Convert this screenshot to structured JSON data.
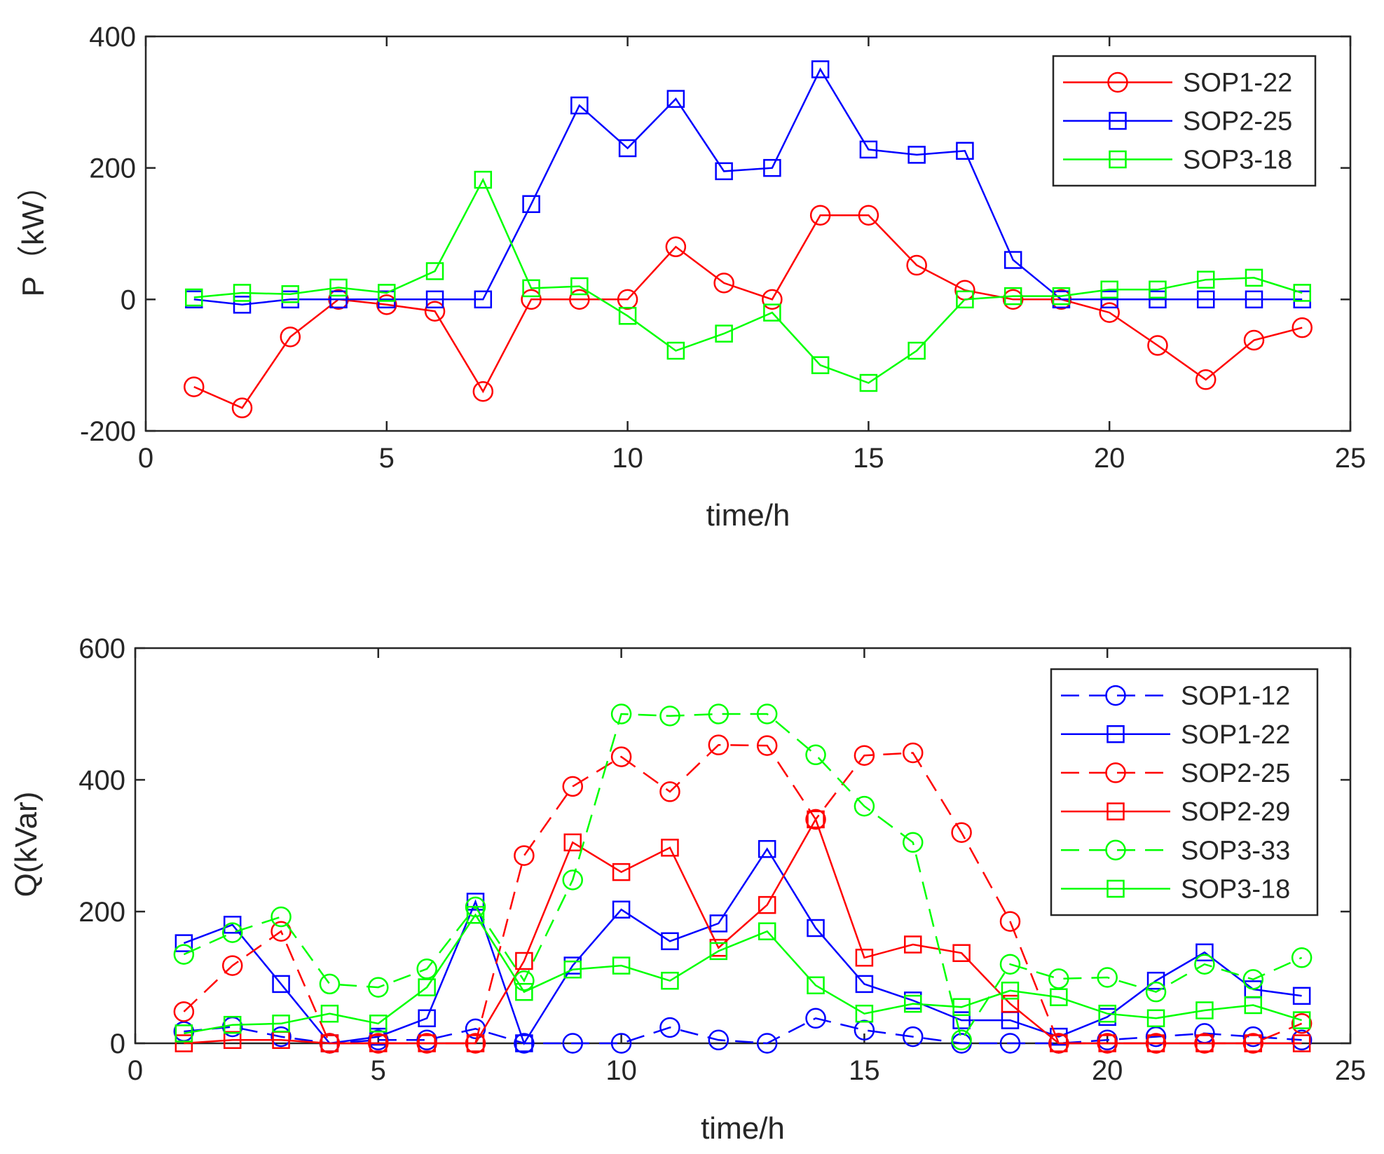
{
  "chart_data": [
    {
      "type": "line",
      "xlabel": "time/h",
      "ylabel": "P（kW）",
      "xlim": [
        0,
        25
      ],
      "ylim": [
        -200,
        400
      ],
      "xticks": [
        "0",
        "5",
        "10",
        "15",
        "20",
        "25"
      ],
      "yticks": [
        "-200",
        "0",
        "200",
        "400"
      ],
      "grid": false,
      "legend_position": "top-right",
      "x": [
        1,
        2,
        3,
        4,
        5,
        6,
        7,
        8,
        9,
        10,
        11,
        12,
        13,
        14,
        15,
        16,
        17,
        18,
        19,
        20,
        21,
        22,
        23,
        24
      ],
      "series": [
        {
          "name": "SOP1-22",
          "color": "#ff0000",
          "marker": "circle",
          "line": "solid",
          "values": [
            -133,
            -165,
            -57,
            0,
            -8,
            -18,
            -140,
            0,
            0,
            0,
            80,
            25,
            0,
            128,
            128,
            52,
            14,
            0,
            0,
            -20,
            -70,
            -122,
            -62,
            -43
          ]
        },
        {
          "name": "SOP2-25",
          "color": "#0000ff",
          "marker": "square",
          "line": "solid",
          "values": [
            0,
            -8,
            0,
            0,
            0,
            0,
            0,
            145,
            295,
            230,
            305,
            195,
            200,
            350,
            228,
            220,
            226,
            60,
            0,
            0,
            0,
            0,
            0,
            0
          ]
        },
        {
          "name": "SOP3-18",
          "color": "#00ff00",
          "marker": "square",
          "line": "solid",
          "values": [
            3,
            10,
            8,
            18,
            10,
            43,
            182,
            17,
            20,
            -25,
            -78,
            -52,
            -20,
            -100,
            -127,
            -78,
            0,
            5,
            5,
            15,
            15,
            30,
            33,
            10
          ]
        }
      ]
    },
    {
      "type": "line",
      "xlabel": "time/h",
      "ylabel": "Q(kVar)",
      "xlim": [
        0,
        25
      ],
      "ylim": [
        0,
        600
      ],
      "xticks": [
        "0",
        "5",
        "10",
        "15",
        "20",
        "25"
      ],
      "yticks": [
        "0",
        "200",
        "400",
        "600"
      ],
      "grid": false,
      "legend_position": "top-right",
      "x": [
        1,
        2,
        3,
        4,
        5,
        6,
        7,
        8,
        9,
        10,
        11,
        12,
        13,
        14,
        15,
        16,
        17,
        18,
        19,
        20,
        21,
        22,
        23,
        24
      ],
      "series": [
        {
          "name": "SOP1-12",
          "color": "#0000ff",
          "marker": "circle",
          "line": "dashed",
          "values": [
            18,
            25,
            10,
            0,
            5,
            5,
            22,
            0,
            0,
            0,
            24,
            5,
            0,
            38,
            20,
            10,
            0,
            0,
            0,
            5,
            10,
            15,
            10,
            5
          ]
        },
        {
          "name": "SOP1-22",
          "color": "#0000ff",
          "marker": "square",
          "line": "solid",
          "values": [
            152,
            180,
            90,
            0,
            10,
            38,
            215,
            0,
            118,
            203,
            155,
            182,
            295,
            175,
            90,
            65,
            35,
            35,
            10,
            40,
            95,
            138,
            82,
            72
          ]
        },
        {
          "name": "SOP2-25",
          "color": "#ff0000",
          "marker": "circle",
          "line": "dashed",
          "values": [
            48,
            118,
            170,
            0,
            0,
            0,
            0,
            285,
            390,
            435,
            382,
            453,
            452,
            340,
            437,
            441,
            320,
            185,
            0,
            0,
            0,
            0,
            0,
            30
          ]
        },
        {
          "name": "SOP2-29",
          "color": "#ff0000",
          "marker": "square",
          "line": "solid",
          "values": [
            0,
            5,
            5,
            0,
            0,
            0,
            0,
            125,
            305,
            260,
            297,
            145,
            210,
            340,
            130,
            150,
            137,
            60,
            0,
            0,
            0,
            0,
            0,
            0
          ]
        },
        {
          "name": "SOP3-33",
          "color": "#00ff00",
          "marker": "circle",
          "line": "dashed",
          "values": [
            135,
            168,
            192,
            90,
            85,
            113,
            207,
            95,
            248,
            500,
            497,
            500,
            500,
            438,
            360,
            305,
            5,
            120,
            98,
            100,
            78,
            120,
            97,
            130
          ]
        },
        {
          "name": "SOP3-18",
          "color": "#00ff00",
          "marker": "square",
          "line": "solid",
          "values": [
            15,
            28,
            30,
            45,
            30,
            85,
            195,
            78,
            112,
            118,
            95,
            140,
            170,
            88,
            45,
            60,
            55,
            80,
            70,
            45,
            38,
            50,
            58,
            35
          ]
        }
      ]
    }
  ]
}
